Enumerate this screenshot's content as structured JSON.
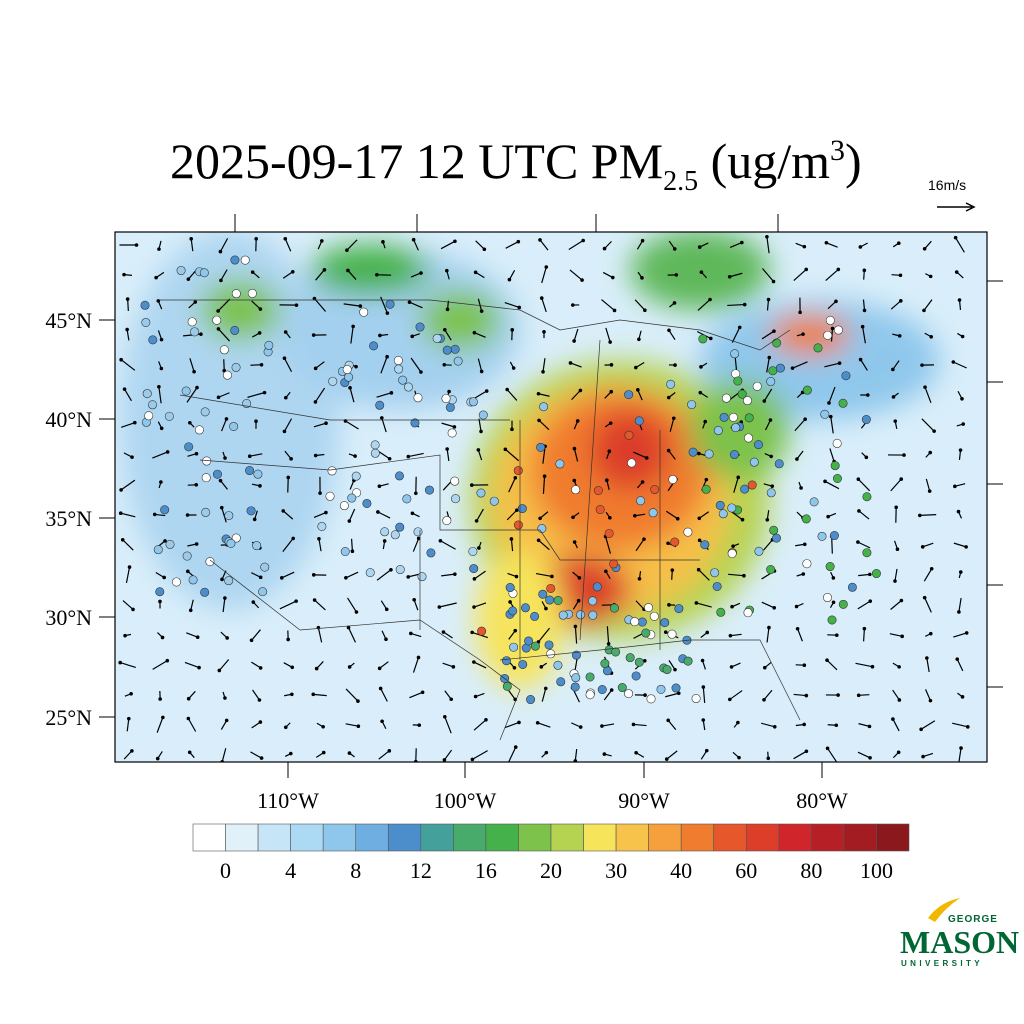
{
  "title": {
    "main": "2025-09-17 12 UTC PM",
    "sub": "2.5",
    "unit": " (ug/m",
    "sup": "3",
    "close": ")"
  },
  "reference_vector": "16m/s",
  "latitude_labels": [
    "45°N",
    "40°N",
    "35°N",
    "30°N",
    "25°N"
  ],
  "longitude_labels": [
    "110°W",
    "100°W",
    "90°W",
    "80°W"
  ],
  "colorbar": {
    "colors": [
      "#ffffff",
      "#e1f1fa",
      "#c6e6f7",
      "#acd9f3",
      "#8fc7ec",
      "#6eaee0",
      "#4b8ecb",
      "#43a09b",
      "#48aa6b",
      "#45b14a",
      "#7cc24b",
      "#b5d351",
      "#f6e45b",
      "#f8c34b",
      "#f6a03d",
      "#f07c2f",
      "#e6572c",
      "#dc3e2a",
      "#d0252a",
      "#b71f26",
      "#a21c22",
      "#8a181c"
    ],
    "labels": [
      0,
      4,
      8,
      12,
      16,
      20,
      30,
      40,
      60,
      80,
      100
    ]
  },
  "logo": {
    "top": "GEORGE",
    "name": "MASON",
    "bottom": "UNIVERSITY"
  }
}
